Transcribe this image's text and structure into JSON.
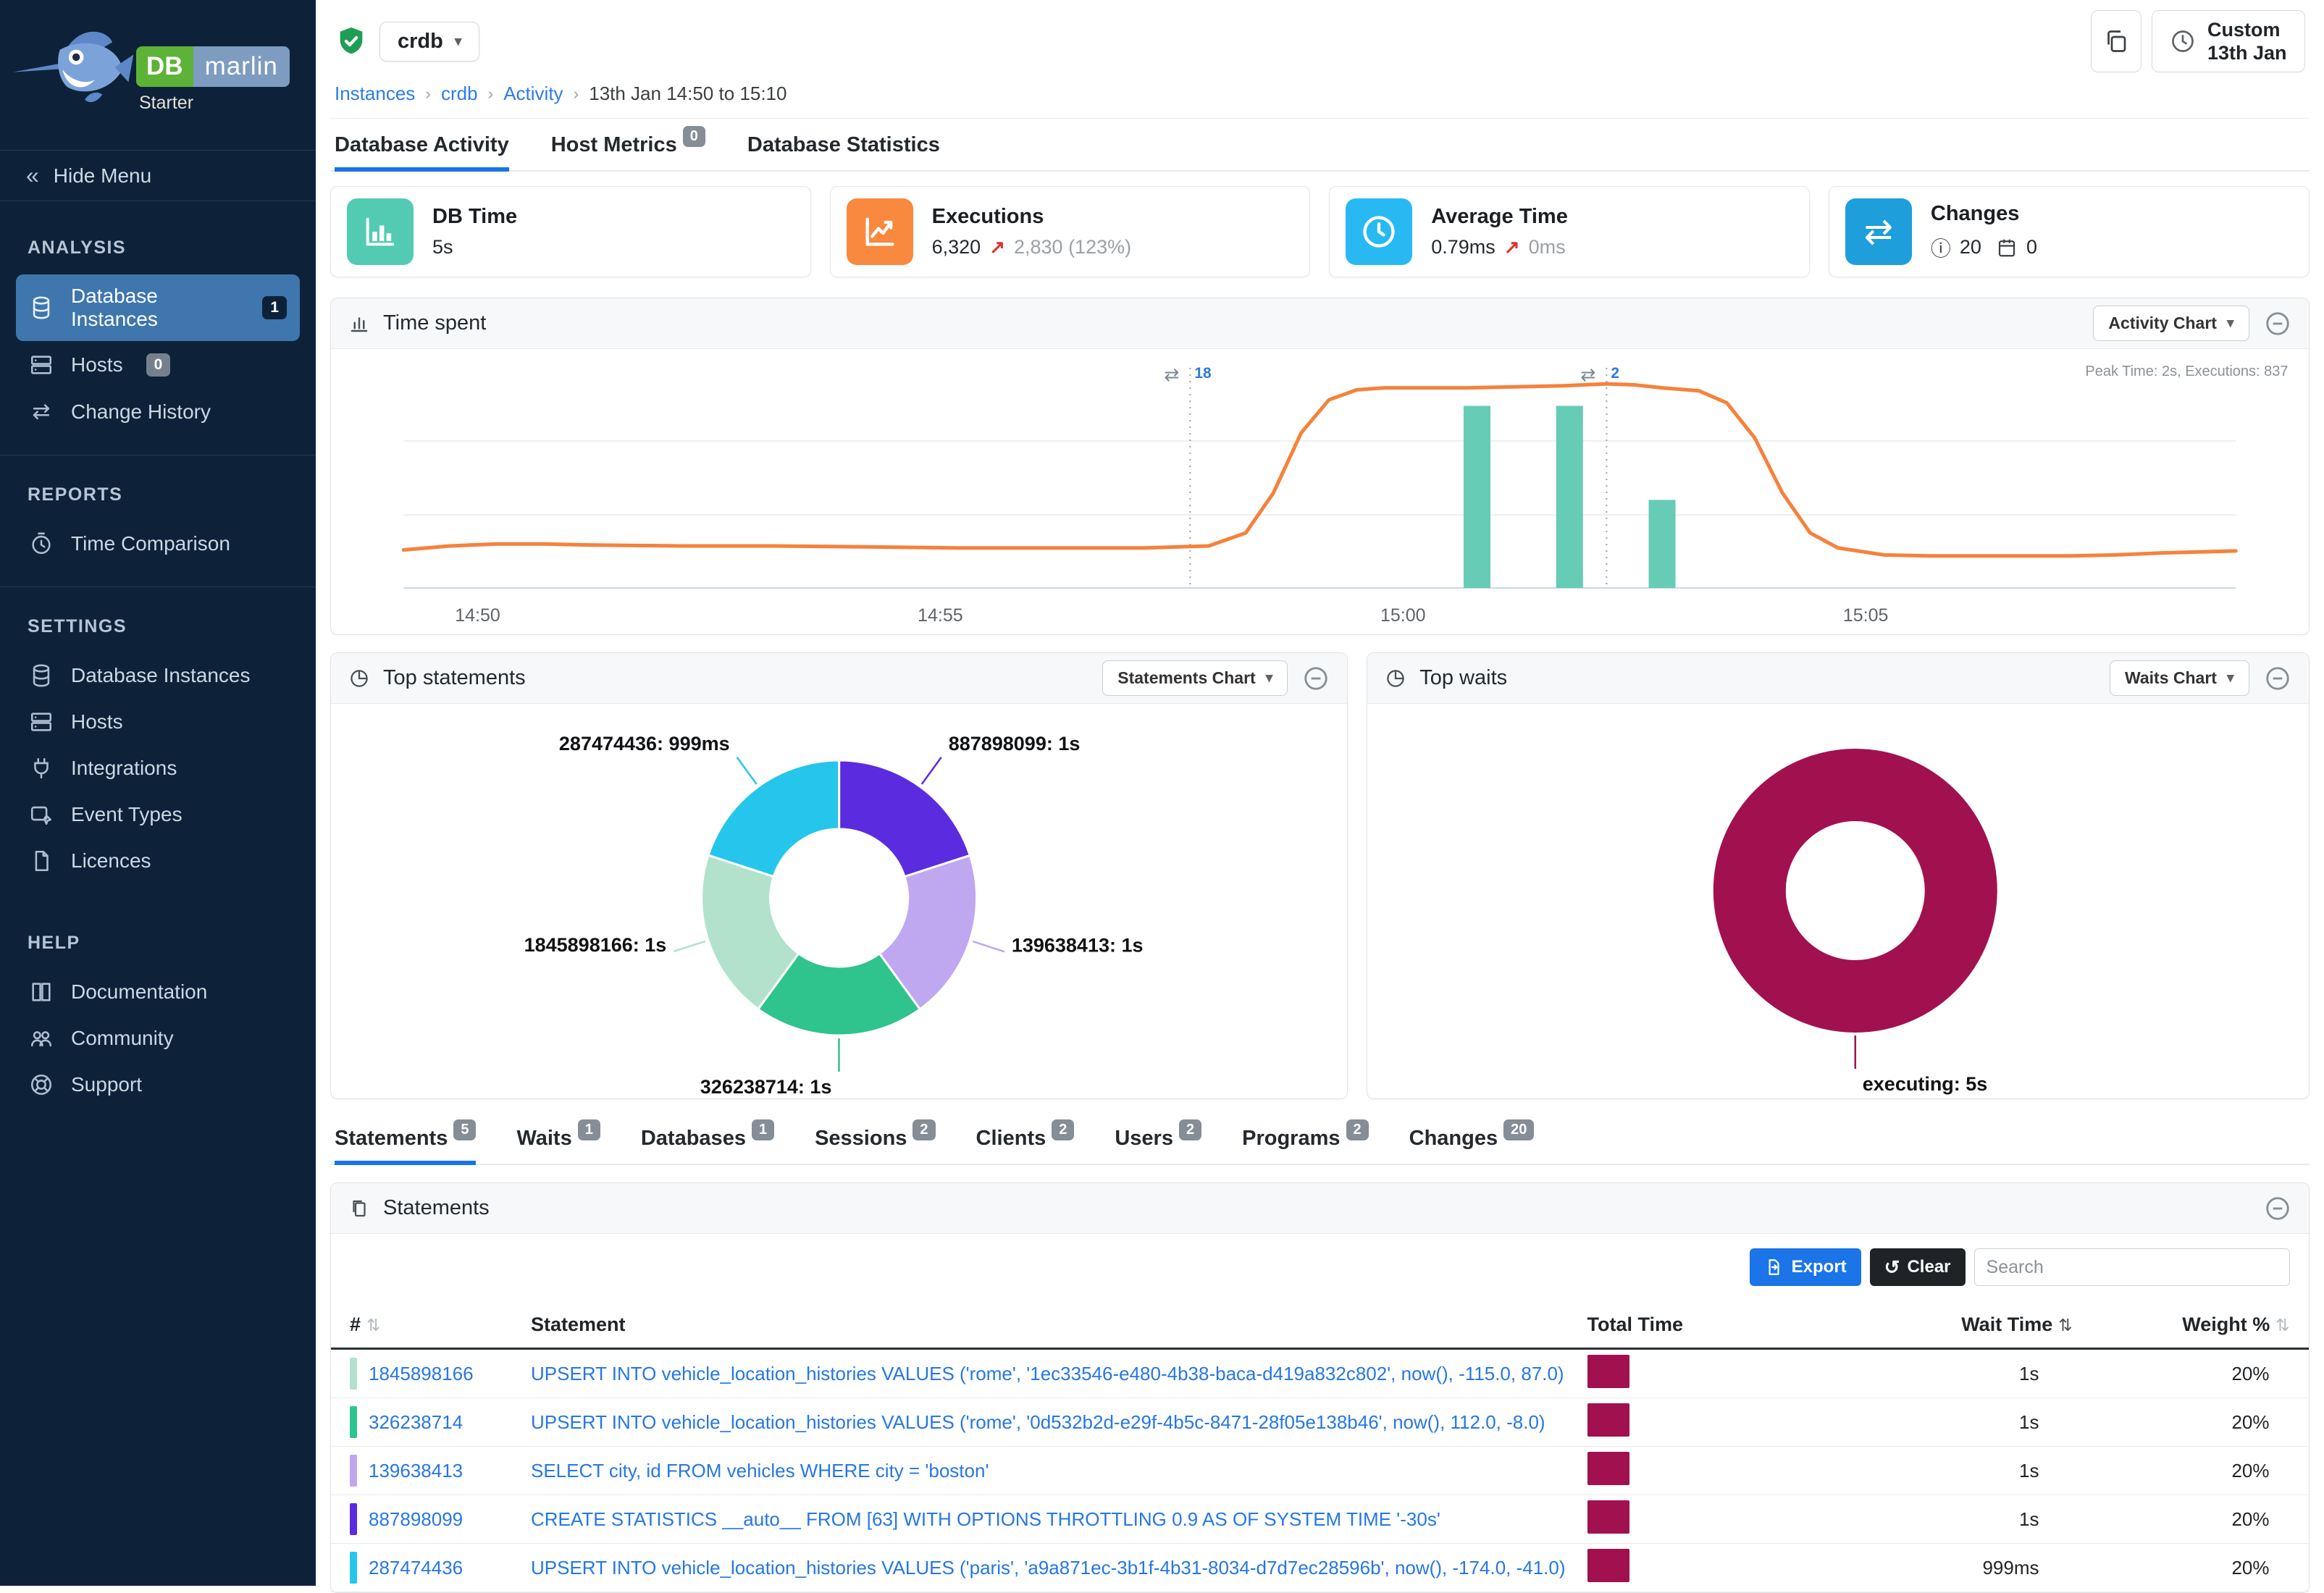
{
  "brand": {
    "db_label": "DB",
    "marlin_label": "marlin",
    "edition": "Starter"
  },
  "sidebar": {
    "hide_menu": "Hide Menu",
    "sections": [
      {
        "title": "ANALYSIS",
        "items": [
          {
            "label": "Database Instances",
            "badge": "1"
          },
          {
            "label": "Hosts",
            "badge": "0"
          },
          {
            "label": "Change History"
          }
        ]
      },
      {
        "title": "REPORTS",
        "items": [
          {
            "label": "Time Comparison"
          }
        ]
      },
      {
        "title": "SETTINGS",
        "items": [
          {
            "label": "Database Instances"
          },
          {
            "label": "Hosts"
          },
          {
            "label": "Integrations"
          },
          {
            "label": "Event Types"
          },
          {
            "label": "Licences"
          }
        ]
      },
      {
        "title": "HELP",
        "items": [
          {
            "label": "Documentation"
          },
          {
            "label": "Community"
          },
          {
            "label": "Support"
          }
        ]
      }
    ]
  },
  "header": {
    "instance_selector": "crdb",
    "breadcrumb": {
      "links": [
        "Instances",
        "crdb",
        "Activity"
      ],
      "current": "13th Jan 14:50 to 15:10"
    },
    "time_range_button": {
      "line1": "Custom",
      "line2": "13th Jan"
    }
  },
  "page_tabs": [
    {
      "label": "Database Activity"
    },
    {
      "label": "Host Metrics",
      "badge": "0"
    },
    {
      "label": "Database Statistics"
    }
  ],
  "cards": [
    {
      "title": "DB Time",
      "value": "5s",
      "color": "#52cbb2"
    },
    {
      "title": "Executions",
      "value": "6,320",
      "delta": "2,830 (123%)",
      "color": "#f8893f"
    },
    {
      "title": "Average Time",
      "value": "0.79ms",
      "delta": "0ms",
      "color": "#29b9f2"
    },
    {
      "title": "Changes",
      "info_count": "20",
      "calendar_count": "0",
      "color": "#1e9edb"
    }
  ],
  "panels": {
    "time_spent": {
      "title": "Time spent",
      "dropdown": "Activity Chart",
      "note": "Peak Time: 2s, Executions: 837"
    },
    "top_statements": {
      "title": "Top statements",
      "dropdown": "Statements Chart"
    },
    "top_waits": {
      "title": "Top waits",
      "dropdown": "Waits Chart"
    },
    "statements": {
      "title": "Statements"
    }
  },
  "detail_tabs": [
    {
      "label": "Statements",
      "badge": "5"
    },
    {
      "label": "Waits",
      "badge": "1"
    },
    {
      "label": "Databases",
      "badge": "1"
    },
    {
      "label": "Sessions",
      "badge": "2"
    },
    {
      "label": "Clients",
      "badge": "2"
    },
    {
      "label": "Users",
      "badge": "2"
    },
    {
      "label": "Programs",
      "badge": "2"
    },
    {
      "label": "Changes",
      "badge": "20"
    }
  ],
  "table": {
    "toolbar": {
      "export_label": "Export",
      "clear_label": "Clear",
      "search_placeholder": "Search"
    },
    "columns": {
      "num": "#",
      "statement": "Statement",
      "total_time": "Total Time",
      "wait_time": "Wait Time",
      "weight": "Weight %"
    },
    "bar_color": "#a11150",
    "rows": [
      {
        "id": "1845898166",
        "chip_color": "#b2e2cc",
        "statement": "UPSERT INTO vehicle_location_histories VALUES ('rome', '1ec33546-e480-4b38-baca-d419a832c802', now(), -115.0, 87.0)",
        "wait_time": "1s",
        "weight": "20%"
      },
      {
        "id": "326238714",
        "chip_color": "#2fc38e",
        "statement": "UPSERT INTO vehicle_location_histories VALUES ('rome', '0d532b2d-e29f-4b5c-8471-28f05e138b46', now(), 112.0, -8.0)",
        "wait_time": "1s",
        "weight": "20%"
      },
      {
        "id": "139638413",
        "chip_color": "#c0a8f0",
        "statement": "SELECT city, id FROM vehicles WHERE city = 'boston'",
        "wait_time": "1s",
        "weight": "20%"
      },
      {
        "id": "887898099",
        "chip_color": "#5b2be0",
        "statement": "CREATE STATISTICS __auto__ FROM [63] WITH OPTIONS THROTTLING 0.9 AS OF SYSTEM TIME '-30s'",
        "wait_time": "1s",
        "weight": "20%"
      },
      {
        "id": "287474436",
        "chip_color": "#26c6ec",
        "statement": "UPSERT INTO vehicle_location_histories VALUES ('paris', 'a9a871ec-3b1f-4b31-8034-d7d7ec28596b', now(), -174.0, -41.0)",
        "wait_time": "999ms",
        "weight": "20%"
      }
    ]
  },
  "chart_data": [
    {
      "id": "time_spent",
      "type": "line",
      "title": "Time spent",
      "note": "Peak Time: 2s, Executions: 837",
      "x_axis": {
        "unit": "time of day, minutes from 14:49",
        "domain": [
          0,
          19.8
        ],
        "ticks": [
          {
            "pos": 0.8,
            "label": "14:50"
          },
          {
            "pos": 5.8,
            "label": "14:55"
          },
          {
            "pos": 10.8,
            "label": "15:00"
          },
          {
            "pos": 15.8,
            "label": "15:05"
          }
        ]
      },
      "y_axis": {
        "unit": "seconds",
        "domain": [
          0,
          2.2
        ],
        "peak_time_s": 2,
        "peak_executions": 837
      },
      "line_series": {
        "name": "Time spent",
        "color": "#f5823c",
        "points": [
          [
            0,
            0.38
          ],
          [
            0.5,
            0.42
          ],
          [
            1,
            0.44
          ],
          [
            1.5,
            0.44
          ],
          [
            2,
            0.43
          ],
          [
            3,
            0.42
          ],
          [
            4,
            0.42
          ],
          [
            5,
            0.41
          ],
          [
            6,
            0.4
          ],
          [
            7,
            0.4
          ],
          [
            8,
            0.4
          ],
          [
            8.7,
            0.42
          ],
          [
            9.1,
            0.55
          ],
          [
            9.4,
            0.95
          ],
          [
            9.7,
            1.55
          ],
          [
            10,
            1.88
          ],
          [
            10.3,
            1.98
          ],
          [
            10.6,
            2.0
          ],
          [
            11,
            2.0
          ],
          [
            11.5,
            2.0
          ],
          [
            12,
            2.01
          ],
          [
            12.5,
            2.02
          ],
          [
            13,
            2.04
          ],
          [
            13.3,
            2.03
          ],
          [
            13.6,
            2.0
          ],
          [
            14,
            1.97
          ],
          [
            14.3,
            1.85
          ],
          [
            14.6,
            1.5
          ],
          [
            14.9,
            0.95
          ],
          [
            15.2,
            0.55
          ],
          [
            15.5,
            0.4
          ],
          [
            16,
            0.33
          ],
          [
            16.5,
            0.32
          ],
          [
            17,
            0.32
          ],
          [
            17.5,
            0.32
          ],
          [
            18,
            0.32
          ],
          [
            18.5,
            0.33
          ],
          [
            19,
            0.35
          ],
          [
            19.8,
            0.37
          ]
        ]
      },
      "bar_series": {
        "name": "Executions",
        "color": "#67ccb5",
        "bar_width": 0.29,
        "points": [
          [
            11.6,
            1.82
          ],
          [
            12.6,
            1.82
          ],
          [
            13.6,
            0.88
          ]
        ],
        "executions_estimate": [
          837,
          830,
          404
        ]
      },
      "event_markers": [
        {
          "pos": 8.5,
          "count": "18"
        },
        {
          "pos": 13.0,
          "count": "2"
        }
      ],
      "gridlines": [
        0.73,
        1.47
      ],
      "marker_count_color": "#2d7be0"
    },
    {
      "id": "top_statements",
      "type": "pie",
      "donut": true,
      "title": "Top statements",
      "segments": [
        {
          "label": "887898099: 1s",
          "value_ms": 1000,
          "color": "#5b2be0"
        },
        {
          "label": "139638413: 1s",
          "value_ms": 1000,
          "color": "#c0a8f0"
        },
        {
          "label": "326238714: 1s",
          "value_ms": 1000,
          "color": "#2fc38e",
          "label_side": "left"
        },
        {
          "label": "1845898166: 1s",
          "value_ms": 1000,
          "color": "#b2e2cc"
        },
        {
          "label": "287474436: 999ms",
          "value_ms": 999,
          "color": "#26c6ec"
        }
      ]
    },
    {
      "id": "top_waits",
      "type": "pie",
      "donut": true,
      "title": "Top waits",
      "segments": [
        {
          "label": "executing: 5s",
          "value_ms": 5000,
          "color": "#a11150",
          "label_side": "right"
        }
      ]
    }
  ]
}
